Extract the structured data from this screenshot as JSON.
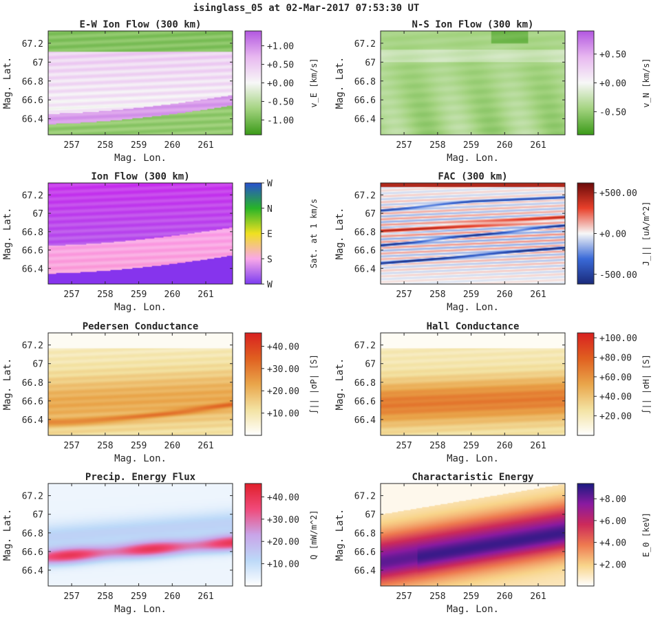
{
  "suptitle": "isinglass_05 at 02-Mar-2017 07:53:30 UT",
  "chart_data": [
    {
      "type": "heatmap",
      "title": "E-W Ion Flow (300 km)",
      "xlabel": "Mag. Lon.",
      "ylabel": "Mag. Lat.",
      "xlim": [
        256.3,
        261.8
      ],
      "ylim": [
        66.23,
        67.33
      ],
      "xticks": [
        "257",
        "258",
        "259",
        "260",
        "261"
      ],
      "yticks": [
        "66.4",
        "66.6",
        "66.8",
        "67",
        "67.2"
      ],
      "colorbar": {
        "label": "v_E [km/s]",
        "range": [
          -1.4,
          1.4
        ],
        "colormap": [
          "#3a9a18",
          "#a3d37f",
          "#f7f7f7",
          "#e8b8f0",
          "#b257e0"
        ],
        "ticks": [
          {
            "v": 1.0,
            "t": "+1.00"
          },
          {
            "v": 0.5,
            "t": "+0.50"
          },
          {
            "v": 0.0,
            "t": "+0.00"
          },
          {
            "v": -0.5,
            "t": "-0.50"
          },
          {
            "v": -1.0,
            "t": "-1.00"
          }
        ]
      }
    },
    {
      "type": "heatmap",
      "title": "N-S Ion Flow (300 km)",
      "xlabel": "Mag. Lon.",
      "ylabel": "Mag. Lat.",
      "xlim": [
        256.3,
        261.8
      ],
      "ylim": [
        66.23,
        67.33
      ],
      "xticks": [
        "257",
        "258",
        "259",
        "260",
        "261"
      ],
      "yticks": [
        "66.4",
        "66.6",
        "66.8",
        "67",
        "67.2"
      ],
      "colorbar": {
        "label": "v_N [km/s]",
        "range": [
          -0.9,
          0.9
        ],
        "colormap": [
          "#3a9a18",
          "#a3d37f",
          "#f7f7f7",
          "#e8b8f0",
          "#b257e0"
        ],
        "ticks": [
          {
            "v": 0.5,
            "t": "+0.50"
          },
          {
            "v": 0.0,
            "t": "+0.00"
          },
          {
            "v": -0.5,
            "t": "-0.50"
          }
        ]
      }
    },
    {
      "type": "heatmap",
      "title": "Ion Flow (300 km)",
      "xlabel": "Mag. Lon.",
      "ylabel": "Mag. Lat.",
      "xlim": [
        256.3,
        261.8
      ],
      "ylim": [
        66.23,
        67.33
      ],
      "xticks": [
        "257",
        "258",
        "259",
        "260",
        "261"
      ],
      "yticks": [
        "66.4",
        "66.6",
        "66.8",
        "67",
        "67.2"
      ],
      "colorbar": {
        "label": "Sat. at 1 km/s",
        "range": [
          0,
          4
        ],
        "colormap": [
          "#7b3cf0",
          "#f9a8e8",
          "#f0e020",
          "#28b428",
          "#2850d0"
        ],
        "ticks": [
          {
            "v": 4,
            "t": "W"
          },
          {
            "v": 3,
            "t": "N"
          },
          {
            "v": 2,
            "t": "E"
          },
          {
            "v": 1,
            "t": "S"
          },
          {
            "v": 0,
            "t": "W"
          }
        ]
      }
    },
    {
      "type": "heatmap",
      "title": "FAC (300 km)",
      "xlabel": "Mag. Lon.",
      "ylabel": "Mag. Lat.",
      "xlim": [
        256.3,
        261.8
      ],
      "ylim": [
        66.23,
        67.33
      ],
      "xticks": [
        "257",
        "258",
        "259",
        "260",
        "261"
      ],
      "yticks": [
        "66.4",
        "66.6",
        "66.8",
        "67",
        "67.2"
      ],
      "colorbar": {
        "label": "J_|| [uA/m^2]",
        "range": [
          -620,
          620
        ],
        "colormap": [
          "#1a2a7a",
          "#3a6ad8",
          "#f7f7f7",
          "#e8402a",
          "#6a0a0a"
        ],
        "ticks": [
          {
            "v": 500,
            "t": "+500.00"
          },
          {
            "v": 0,
            "t": "+0.00"
          },
          {
            "v": -500,
            "t": "-500.00"
          }
        ]
      }
    },
    {
      "type": "heatmap",
      "title": "Pedersen Conductance",
      "xlabel": "Mag. Lon.",
      "ylabel": "Mag. Lat.",
      "xlim": [
        256.3,
        261.8
      ],
      "ylim": [
        66.23,
        67.33
      ],
      "xticks": [
        "257",
        "258",
        "259",
        "260",
        "261"
      ],
      "yticks": [
        "66.4",
        "66.6",
        "66.8",
        "67",
        "67.2"
      ],
      "colorbar": {
        "label": "∫|| |σP| [S]",
        "range": [
          0,
          46
        ],
        "colormap": [
          "#ffffff",
          "#f3e2a2",
          "#e9a54a",
          "#e06020",
          "#d82020"
        ],
        "ticks": [
          {
            "v": 40,
            "t": "+40.00"
          },
          {
            "v": 30,
            "t": "+30.00"
          },
          {
            "v": 20,
            "t": "+20.00"
          },
          {
            "v": 10,
            "t": "+10.00"
          }
        ]
      }
    },
    {
      "type": "heatmap",
      "title": "Hall Conductance",
      "xlabel": "Mag. Lon.",
      "ylabel": "Mag. Lat.",
      "xlim": [
        256.3,
        261.8
      ],
      "ylim": [
        66.23,
        67.33
      ],
      "xticks": [
        "257",
        "258",
        "259",
        "260",
        "261"
      ],
      "yticks": [
        "66.4",
        "66.6",
        "66.8",
        "67",
        "67.2"
      ],
      "colorbar": {
        "label": "∫|| |σH| [S]",
        "range": [
          0,
          105
        ],
        "colormap": [
          "#ffffff",
          "#f3e2a2",
          "#e9a54a",
          "#e06020",
          "#d82020"
        ],
        "ticks": [
          {
            "v": 100,
            "t": "+100.00"
          },
          {
            "v": 80,
            "t": "+80.00"
          },
          {
            "v": 60,
            "t": "+60.00"
          },
          {
            "v": 40,
            "t": "+40.00"
          },
          {
            "v": 20,
            "t": "+20.00"
          }
        ]
      }
    },
    {
      "type": "heatmap",
      "title": "Precip. Energy Flux",
      "xlabel": "Mag. Lon.",
      "ylabel": "Mag. Lat.",
      "xlim": [
        256.3,
        261.8
      ],
      "ylim": [
        66.23,
        67.33
      ],
      "xticks": [
        "257",
        "258",
        "259",
        "260",
        "261"
      ],
      "yticks": [
        "66.4",
        "66.6",
        "66.8",
        "67",
        "67.2"
      ],
      "colorbar": {
        "label": "Q [mW/m^2]",
        "range": [
          0,
          46
        ],
        "colormap": [
          "#ffffff",
          "#bcd9f8",
          "#c9a4e8",
          "#f04a7a",
          "#e01f2a"
        ],
        "ticks": [
          {
            "v": 40,
            "t": "+40.00"
          },
          {
            "v": 30,
            "t": "+30.00"
          },
          {
            "v": 20,
            "t": "+20.00"
          },
          {
            "v": 10,
            "t": "+10.00"
          }
        ]
      }
    },
    {
      "type": "heatmap",
      "title": "Charactaristic Energy",
      "xlabel": "Mag. Lon.",
      "ylabel": "Mag. Lat.",
      "xlim": [
        256.3,
        261.8
      ],
      "ylim": [
        66.23,
        67.33
      ],
      "xticks": [
        "257",
        "258",
        "259",
        "260",
        "261"
      ],
      "yticks": [
        "66.4",
        "66.6",
        "66.8",
        "67",
        "67.2"
      ],
      "colorbar": {
        "label": "E_0 [keV]",
        "range": [
          0,
          9.4
        ],
        "colormap": [
          "#ffffff",
          "#f8d48a",
          "#ee7a50",
          "#cc2a5a",
          "#8a1aa0",
          "#1a1a80"
        ],
        "ticks": [
          {
            "v": 8,
            "t": "+8.00"
          },
          {
            "v": 6,
            "t": "+6.00"
          },
          {
            "v": 4,
            "t": "+4.00"
          },
          {
            "v": 2,
            "t": "+2.00"
          }
        ]
      }
    }
  ]
}
